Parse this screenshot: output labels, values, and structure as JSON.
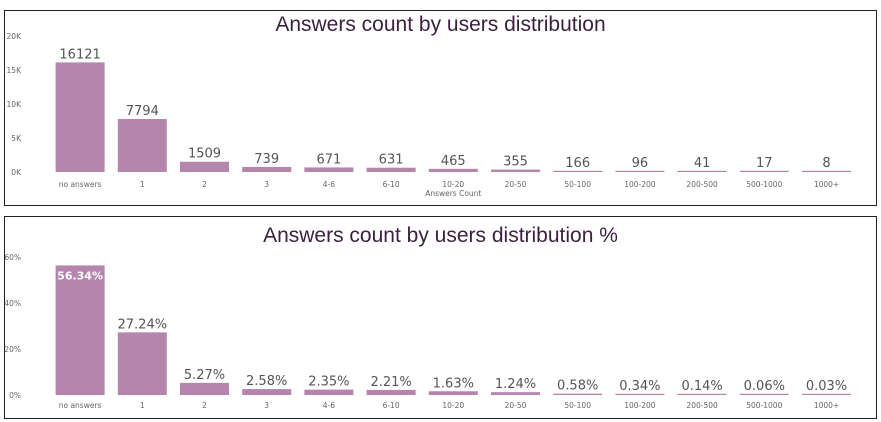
{
  "colors": {
    "bar": "#b585ae",
    "gridline": "#e6e6e6",
    "title": "#3d2240"
  },
  "chart_data": [
    {
      "type": "bar",
      "title": "Answers count by users distribution",
      "xlabel": "Answers Count",
      "ylabel": "",
      "ylim": [
        0,
        20000
      ],
      "yticks": [
        0,
        5000,
        10000,
        15000,
        20000
      ],
      "ytick_labels": [
        "0K",
        "5K",
        "10K",
        "15K",
        "20K"
      ],
      "categories": [
        "no answers",
        "1",
        "2",
        "3",
        "4-6",
        "6-10",
        "10-20",
        "20-50",
        "50-100",
        "100-200",
        "200-500",
        "500-1000",
        "1000+"
      ],
      "values": [
        16121,
        7794,
        1509,
        739,
        671,
        631,
        465,
        355,
        166,
        96,
        41,
        17,
        8
      ],
      "data_labels": [
        "16121",
        "7794",
        "1509",
        "739",
        "671",
        "631",
        "465",
        "355",
        "166",
        "96",
        "41",
        "17",
        "8"
      ],
      "grid": false
    },
    {
      "type": "bar",
      "title": "Answers count by users distribution %",
      "xlabel": "",
      "ylabel": "",
      "ylim": [
        0,
        60
      ],
      "yticks": [
        0,
        20,
        40,
        60
      ],
      "ytick_labels": [
        "0%",
        "20%",
        "40%",
        "60%"
      ],
      "categories": [
        "no answers",
        "1",
        "2",
        "3",
        "4-6",
        "6-10",
        "10-20",
        "20-50",
        "50-100",
        "100-200",
        "200-500",
        "500-1000",
        "1000+"
      ],
      "values": [
        56.34,
        27.24,
        5.27,
        2.58,
        2.35,
        2.21,
        1.63,
        1.24,
        0.58,
        0.34,
        0.14,
        0.06,
        0.03
      ],
      "data_labels": [
        "56.34%",
        "27.24%",
        "5.27%",
        "2.58%",
        "2.35%",
        "2.21%",
        "1.63%",
        "1.24%",
        "0.58%",
        "0.34%",
        "0.14%",
        "0.06%",
        "0.03%"
      ],
      "grid": false
    }
  ]
}
